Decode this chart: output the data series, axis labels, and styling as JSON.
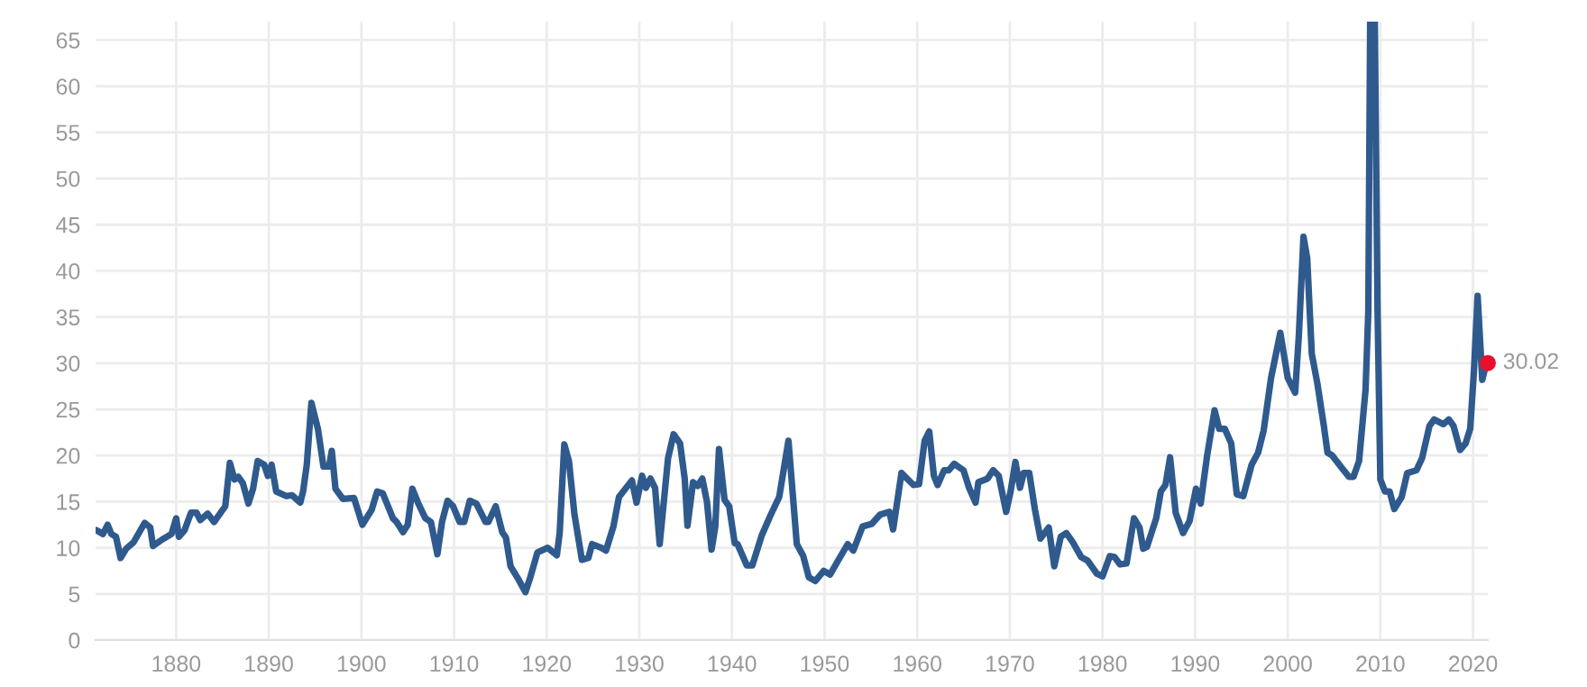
{
  "chart_data": {
    "type": "line",
    "xlim": [
      1871.3,
      2021.6
    ],
    "ylim": [
      0,
      67
    ],
    "xticks": [
      1880,
      1890,
      1900,
      1910,
      1920,
      1930,
      1940,
      1950,
      1960,
      1970,
      1980,
      1990,
      2000,
      2010,
      2020
    ],
    "yticks": [
      0,
      5,
      10,
      15,
      20,
      25,
      30,
      35,
      40,
      45,
      50,
      55,
      60,
      65
    ],
    "grid": true,
    "legend": false,
    "series": [
      {
        "color": "#2f5a8e",
        "x": [
          1871.4,
          1872.1,
          1872.6,
          1873.0,
          1873.5,
          1874.0,
          1874.6,
          1875.4,
          1876.6,
          1877.2,
          1877.5,
          1878.5,
          1879.5,
          1880.0,
          1880.3,
          1880.9,
          1881.6,
          1882.2,
          1882.6,
          1883.4,
          1884.1,
          1885.3,
          1885.8,
          1886.3,
          1886.7,
          1887.2,
          1887.8,
          1888.3,
          1888.8,
          1889.5,
          1889.9,
          1890.3,
          1890.8,
          1891.9,
          1892.5,
          1893.4,
          1893.7,
          1894.1,
          1894.6,
          1895.3,
          1895.9,
          1896.5,
          1896.8,
          1897.2,
          1898.0,
          1899.2,
          1900.1,
          1901.1,
          1901.7,
          1902.3,
          1903.4,
          1903.8,
          1904.5,
          1905.0,
          1905.5,
          1906.1,
          1906.9,
          1907.5,
          1908.2,
          1908.7,
          1909.3,
          1909.9,
          1910.6,
          1911.1,
          1911.7,
          1912.4,
          1913.4,
          1913.7,
          1914.5,
          1915.2,
          1915.6,
          1916.1,
          1917.0,
          1917.7,
          1918.2,
          1919.0,
          1920.1,
          1921.1,
          1921.4,
          1921.9,
          1922.4,
          1923.0,
          1923.8,
          1924.5,
          1924.9,
          1925.9,
          1926.4,
          1927.2,
          1927.8,
          1929.2,
          1929.7,
          1930.3,
          1930.7,
          1931.2,
          1931.7,
          1932.2,
          1933.1,
          1933.7,
          1934.4,
          1934.9,
          1935.2,
          1935.8,
          1936.3,
          1936.8,
          1937.3,
          1937.8,
          1938.2,
          1938.6,
          1939.2,
          1939.7,
          1940.3,
          1940.6,
          1941.6,
          1942.2,
          1943.2,
          1944.2,
          1945.1,
          1946.1,
          1947.0,
          1947.7,
          1948.3,
          1949.0,
          1949.9,
          1950.6,
          1951.5,
          1952.5,
          1953.1,
          1954.1,
          1955.1,
          1956.0,
          1957.0,
          1957.4,
          1958.3,
          1959.6,
          1960.2,
          1960.8,
          1961.3,
          1961.8,
          1962.2,
          1962.9,
          1963.4,
          1964.0,
          1965.0,
          1965.6,
          1966.3,
          1966.6,
          1967.6,
          1968.2,
          1968.8,
          1969.6,
          1970.1,
          1970.6,
          1971.1,
          1971.5,
          1972.1,
          1972.7,
          1973.3,
          1974.2,
          1974.8,
          1975.5,
          1976.1,
          1976.8,
          1977.7,
          1978.4,
          1979.4,
          1980.0,
          1980.8,
          1981.3,
          1981.9,
          1982.6,
          1983.4,
          1984.0,
          1984.4,
          1984.8,
          1985.8,
          1986.3,
          1986.8,
          1987.3,
          1987.9,
          1988.7,
          1989.4,
          1990.1,
          1990.6,
          1991.3,
          1992.1,
          1992.6,
          1993.2,
          1993.9,
          1994.5,
          1995.2,
          1996.1,
          1996.8,
          1997.4,
          1998.2,
          1999.2,
          2000.0,
          2000.8,
          2001.2,
          2001.7,
          2002.1,
          2002.6,
          2003.2,
          2003.9,
          2004.3,
          2004.8,
          2005.8,
          2006.6,
          2007.1,
          2007.7,
          2008.4,
          2008.7,
          2008.9,
          2009.4,
          2009.7,
          2010.0,
          2010.5,
          2011.0,
          2011.5,
          2012.3,
          2012.9,
          2013.9,
          2014.5,
          2015.3,
          2015.8,
          2016.8,
          2017.4,
          2017.9,
          2018.6,
          2019.2,
          2019.7,
          2020.1,
          2020.5,
          2021.0,
          2021.4
        ],
        "values": [
          11.9,
          11.5,
          12.5,
          11.5,
          11.2,
          8.9,
          9.9,
          10.6,
          12.7,
          12.2,
          10.2,
          10.9,
          11.5,
          13.2,
          11.2,
          11.9,
          13.8,
          13.8,
          13.0,
          13.7,
          12.8,
          14.5,
          19.2,
          17.4,
          17.7,
          17.0,
          14.8,
          16.4,
          19.4,
          19.0,
          17.8,
          19.0,
          16.1,
          15.6,
          15.7,
          14.9,
          16.1,
          19.0,
          25.7,
          22.9,
          18.8,
          18.8,
          20.5,
          16.4,
          15.3,
          15.4,
          12.5,
          14.1,
          16.1,
          15.9,
          13.2,
          12.8,
          11.7,
          12.5,
          16.4,
          14.9,
          13.2,
          12.8,
          9.3,
          12.8,
          15.1,
          14.5,
          12.8,
          12.8,
          15.1,
          14.8,
          12.8,
          12.8,
          14.5,
          11.7,
          11.1,
          8.0,
          6.5,
          5.2,
          6.7,
          9.5,
          10.0,
          9.2,
          11.6,
          21.2,
          19.4,
          13.6,
          8.7,
          8.9,
          10.4,
          10.0,
          9.7,
          12.3,
          15.5,
          17.3,
          14.9,
          17.8,
          16.5,
          17.5,
          16.5,
          10.4,
          19.7,
          22.3,
          21.3,
          17.5,
          12.4,
          17.1,
          16.7,
          17.5,
          15.0,
          9.8,
          12.3,
          20.7,
          15.2,
          14.5,
          10.5,
          10.4,
          8.1,
          8.1,
          11.3,
          13.6,
          15.5,
          21.6,
          10.4,
          9.1,
          6.8,
          6.4,
          7.5,
          7.1,
          8.7,
          10.4,
          9.7,
          12.3,
          12.6,
          13.6,
          13.9,
          12.0,
          18.1,
          16.8,
          16.9,
          21.6,
          22.6,
          17.8,
          16.8,
          18.4,
          18.4,
          19.1,
          18.4,
          16.5,
          14.9,
          17.1,
          17.5,
          18.4,
          17.8,
          13.9,
          16.2,
          19.3,
          16.5,
          18.1,
          18.1,
          14.2,
          11.0,
          12.2,
          8.0,
          11.2,
          11.6,
          10.6,
          9.0,
          8.6,
          7.2,
          6.9,
          9.1,
          9.0,
          8.2,
          8.3,
          13.2,
          12.2,
          9.9,
          10.1,
          13.2,
          16.1,
          16.8,
          19.8,
          13.8,
          11.6,
          12.9,
          16.4,
          14.8,
          20.0,
          24.9,
          22.9,
          22.9,
          21.3,
          15.8,
          15.6,
          19.0,
          20.3,
          22.7,
          28.4,
          33.3,
          28.4,
          26.8,
          33.0,
          43.7,
          41.4,
          31.0,
          27.8,
          23.2,
          20.3,
          20.0,
          18.7,
          17.7,
          17.7,
          19.4,
          27.1,
          35.6,
          67,
          67,
          35.6,
          17.4,
          16.1,
          16.1,
          14.2,
          15.5,
          18.1,
          18.4,
          19.7,
          23.2,
          23.9,
          23.4,
          23.9,
          23.2,
          20.6,
          21.3,
          22.9,
          29.1,
          37.3,
          28.2,
          29.8
        ]
      },
      {
        "type": "scatter",
        "color": "#e8112d",
        "x": [
          2021.6
        ],
        "values": [
          30.02
        ],
        "value_labels": [
          "30.02"
        ]
      }
    ]
  }
}
